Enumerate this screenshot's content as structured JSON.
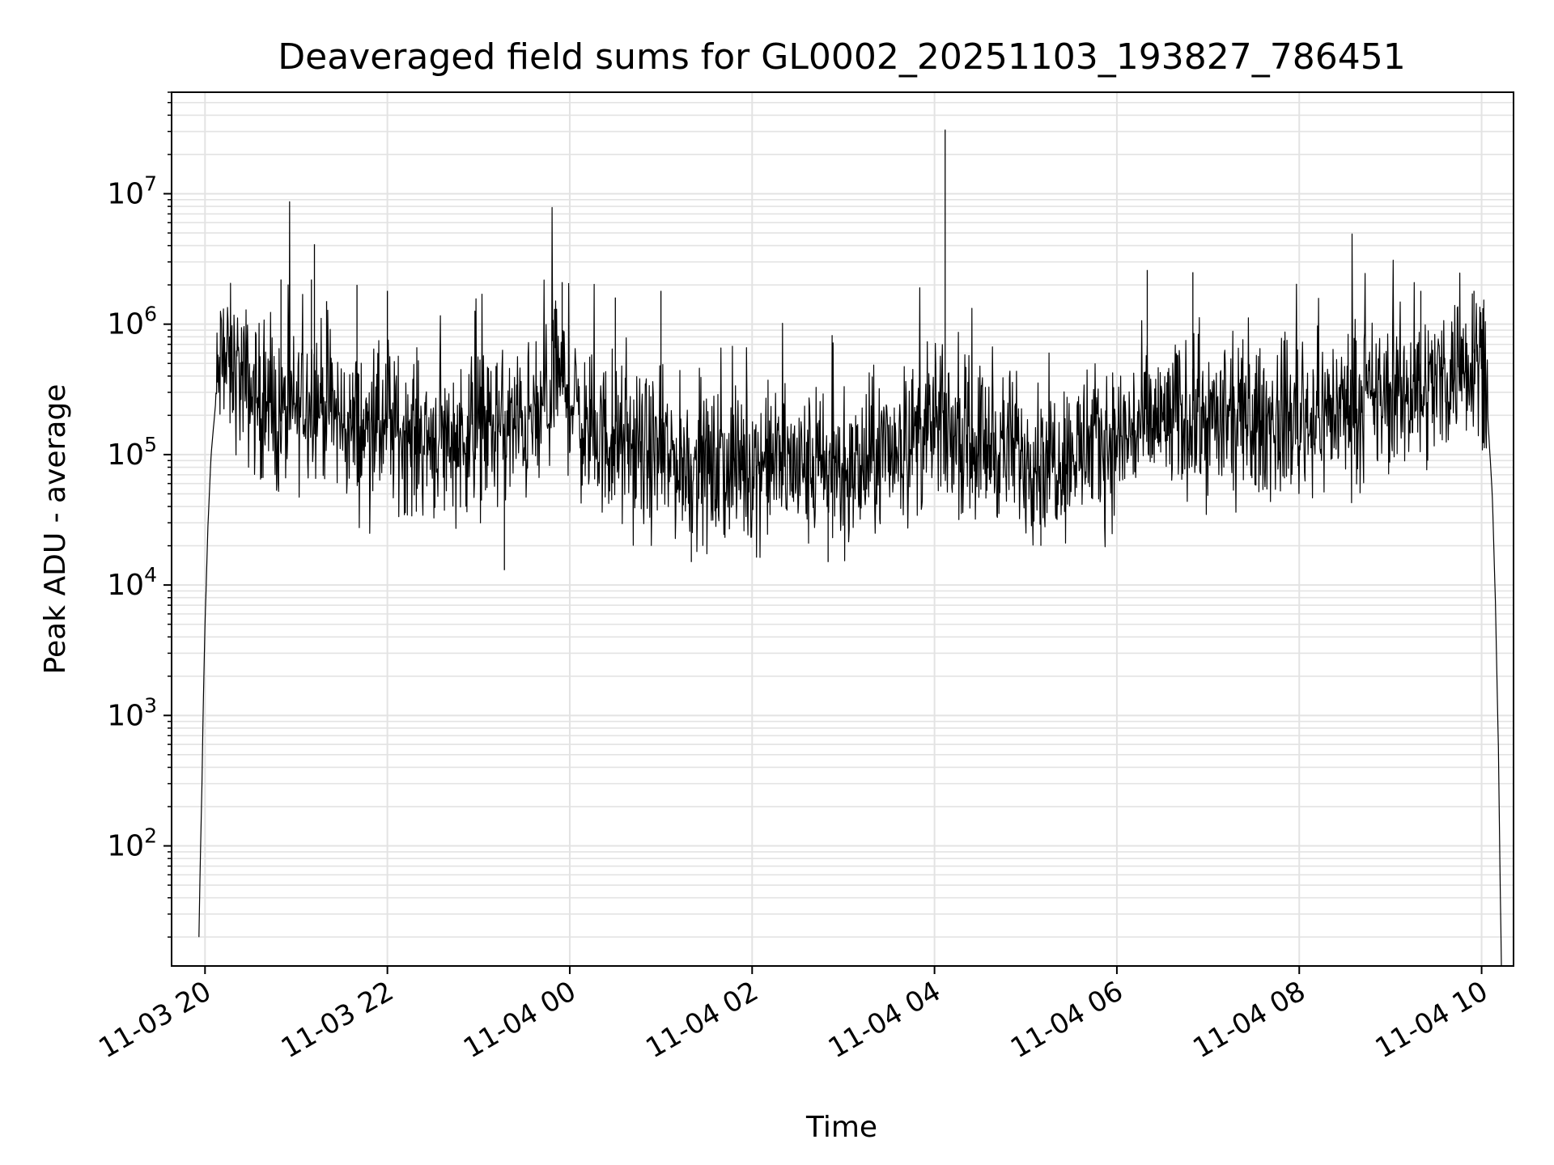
{
  "chart_data": {
    "type": "line",
    "title": "Deaveraged field sums for GL0002_20251103_193827_786451",
    "xlabel": "Time",
    "ylabel": "Peak ADU - average",
    "yscale": "log",
    "ylim": [
      12,
      60000000
    ],
    "xlim": [
      "2025-11-03T19:38",
      "2025-11-04T10:21"
    ],
    "grid": true,
    "grid_minor": true,
    "legend": "none",
    "line_color": "#000000",
    "grid_color": "#e3e3e3",
    "x_ticks": [
      {
        "x": "2025-11-03T20:00",
        "label": "11-03 20"
      },
      {
        "x": "2025-11-03T22:00",
        "label": "11-03 22"
      },
      {
        "x": "2025-11-04T00:00",
        "label": "11-04 00"
      },
      {
        "x": "2025-11-04T02:00",
        "label": "11-04 02"
      },
      {
        "x": "2025-11-04T04:00",
        "label": "11-04 04"
      },
      {
        "x": "2025-11-04T06:00",
        "label": "11-04 06"
      },
      {
        "x": "2025-11-04T08:00",
        "label": "11-04 08"
      },
      {
        "x": "2025-11-04T10:00",
        "label": "11-04 10"
      }
    ],
    "y_ticks": [
      {
        "value": 100,
        "base": "10",
        "exp": "2"
      },
      {
        "value": 1000,
        "base": "10",
        "exp": "3"
      },
      {
        "value": 10000,
        "base": "10",
        "exp": "4"
      },
      {
        "value": 100000,
        "base": "10",
        "exp": "5"
      },
      {
        "value": 1000000,
        "base": "10",
        "exp": "6"
      },
      {
        "value": 10000000,
        "base": "10",
        "exp": "7"
      }
    ],
    "series": [
      {
        "points": [
          [
            "2025-11-03T19:56",
            20
          ],
          [
            "2025-11-03T19:57",
            90
          ],
          [
            "2025-11-03T19:58",
            300
          ],
          [
            "2025-11-03T19:59",
            1500
          ],
          [
            "2025-11-03T20:00",
            5000
          ],
          [
            "2025-11-03T20:02",
            30000
          ],
          [
            "2025-11-03T20:04",
            100000
          ],
          [
            "2025-11-03T20:07",
            250000
          ],
          [
            "2025-11-03T20:10",
            500000
          ],
          [
            "2025-11-03T20:20",
            450000
          ],
          [
            "2025-11-03T20:30",
            300000
          ],
          [
            "2025-11-03T20:40",
            220000
          ],
          [
            "2025-11-03T20:50",
            180000
          ],
          [
            "2025-11-03T21:00",
            220000
          ],
          [
            "2025-11-03T21:10",
            300000
          ],
          [
            "2025-11-03T21:20",
            250000
          ],
          [
            "2025-11-03T21:30",
            170000
          ],
          [
            "2025-11-03T21:45",
            150000
          ],
          [
            "2025-11-03T22:00",
            160000
          ],
          [
            "2025-11-03T22:20",
            140000
          ],
          [
            "2025-11-03T22:40",
            130000
          ],
          [
            "2025-11-03T23:00",
            150000
          ],
          [
            "2025-11-03T23:20",
            160000
          ],
          [
            "2025-11-03T23:40",
            180000
          ],
          [
            "2025-11-03T23:52",
            400000
          ],
          [
            "2025-11-04T00:00",
            300000
          ],
          [
            "2025-11-04T00:10",
            150000
          ],
          [
            "2025-11-04T00:30",
            120000
          ],
          [
            "2025-11-04T00:50",
            100000
          ],
          [
            "2025-11-04T01:10",
            90000
          ],
          [
            "2025-11-04T01:30",
            75000
          ],
          [
            "2025-11-04T01:50",
            80000
          ],
          [
            "2025-11-04T02:10",
            90000
          ],
          [
            "2025-11-04T02:30",
            80000
          ],
          [
            "2025-11-04T02:50",
            70000
          ],
          [
            "2025-11-04T03:10",
            75000
          ],
          [
            "2025-11-04T03:30",
            110000
          ],
          [
            "2025-11-04T03:50",
            140000
          ],
          [
            "2025-11-04T04:05",
            160000
          ],
          [
            "2025-11-04T04:20",
            130000
          ],
          [
            "2025-11-04T04:40",
            120000
          ],
          [
            "2025-11-04T05:00",
            100000
          ],
          [
            "2025-11-04T05:20",
            100000
          ],
          [
            "2025-11-04T05:40",
            110000
          ],
          [
            "2025-11-04T06:00",
            130000
          ],
          [
            "2025-11-04T06:20",
            170000
          ],
          [
            "2025-11-04T06:40",
            190000
          ],
          [
            "2025-11-04T07:00",
            180000
          ],
          [
            "2025-11-04T07:30",
            170000
          ],
          [
            "2025-11-04T08:00",
            190000
          ],
          [
            "2025-11-04T08:30",
            230000
          ],
          [
            "2025-11-04T09:00",
            280000
          ],
          [
            "2025-11-04T09:30",
            350000
          ],
          [
            "2025-11-04T09:50",
            550000
          ],
          [
            "2025-11-04T10:00",
            650000
          ],
          [
            "2025-11-04T10:04",
            200000
          ],
          [
            "2025-11-04T10:07",
            50000
          ],
          [
            "2025-11-04T10:09",
            8000
          ],
          [
            "2025-11-04T10:11",
            600
          ],
          [
            "2025-11-04T10:12",
            80
          ],
          [
            "2025-11-04T10:13",
            12
          ]
        ],
        "spikes": [
          [
            "2025-11-03T20:50",
            2200000
          ],
          [
            "2025-11-03T21:10",
            2200000
          ],
          [
            "2025-11-03T21:12",
            4100000
          ],
          [
            "2025-11-03T21:20",
            1500000
          ],
          [
            "2025-11-03T21:40",
            2000000
          ],
          [
            "2025-11-03T22:00",
            1800000
          ],
          [
            "2025-11-03T23:17",
            13000
          ],
          [
            "2025-11-03T23:55",
            2100000
          ],
          [
            "2025-11-04T00:30",
            1600000
          ],
          [
            "2025-11-04T01:00",
            1800000
          ],
          [
            "2025-11-04T01:20",
            15000
          ],
          [
            "2025-11-04T02:50",
            15000
          ],
          [
            "2025-11-04T04:07",
            31000000
          ],
          [
            "2025-11-04T05:10",
            20000
          ],
          [
            "2025-11-04T06:20",
            2600000
          ],
          [
            "2025-11-04T06:50",
            2500000
          ],
          [
            "2025-11-04T09:20",
            1800000
          ],
          [
            "2025-11-04T09:55",
            1800000
          ]
        ]
      }
    ]
  }
}
